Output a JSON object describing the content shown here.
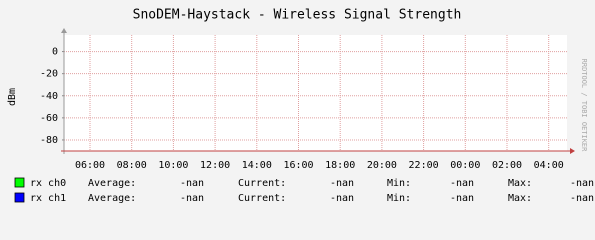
{
  "chart_data": {
    "type": "line",
    "title": "SnoDEM-Haystack - Wireless Signal Strength",
    "y_label": "dBm",
    "watermark": "RRDTOOL / TOBI OETIKER",
    "categories": [
      "06:00",
      "08:00",
      "10:00",
      "12:00",
      "14:00",
      "16:00",
      "18:00",
      "20:00",
      "22:00",
      "00:00",
      "02:00",
      "04:00"
    ],
    "ylim": [
      -90,
      15
    ],
    "yticks": [
      0,
      -20,
      -40,
      -60,
      -80
    ],
    "grid": true,
    "stat_labels": [
      "Average:",
      "Current:",
      "Min:",
      "Max:"
    ],
    "series": [
      {
        "name": "rx ch0",
        "color": "#00ff00",
        "values": [
          null,
          null,
          null,
          null,
          null,
          null,
          null,
          null,
          null,
          null,
          null,
          null
        ],
        "stats": [
          "-nan",
          "-nan",
          "-nan",
          "-nan"
        ]
      },
      {
        "name": "rx ch1",
        "color": "#0000ff",
        "values": [
          null,
          null,
          null,
          null,
          null,
          null,
          null,
          null,
          null,
          null,
          null,
          null
        ],
        "stats": [
          "-nan",
          "-nan",
          "-nan",
          "-nan"
        ]
      }
    ]
  }
}
